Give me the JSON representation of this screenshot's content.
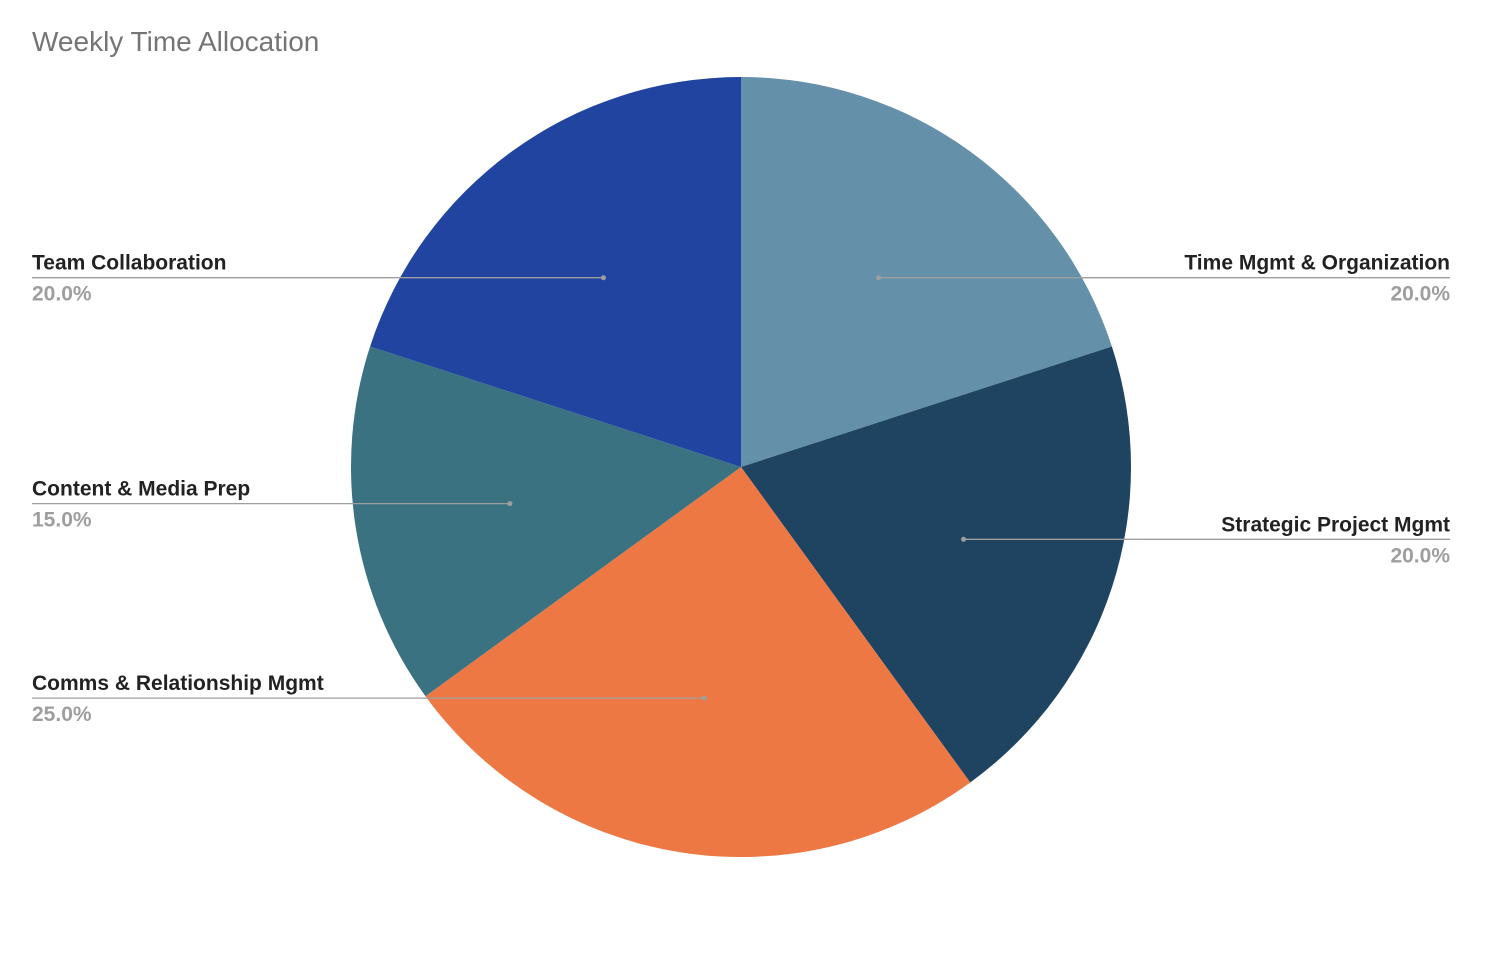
{
  "chart_data": {
    "type": "pie",
    "title": "Weekly Time Allocation",
    "start_angle_deg": 0,
    "direction": "clockwise",
    "legend": "labels beside slices with leader lines",
    "slices": [
      {
        "label": "Time Mgmt & Organization",
        "value": 20.0,
        "percent_label": "20.0%",
        "color": "#6590a9",
        "side": "right"
      },
      {
        "label": "Strategic Project Mgmt",
        "value": 20.0,
        "percent_label": "20.0%",
        "color": "#1e4462",
        "side": "right"
      },
      {
        "label": "Comms & Relationship Mgmt",
        "value": 25.0,
        "percent_label": "25.0%",
        "color": "#ed7844",
        "side": "left"
      },
      {
        "label": "Content & Media Prep",
        "value": 15.0,
        "percent_label": "15.0%",
        "color": "#3a7281",
        "side": "left"
      },
      {
        "label": "Team Collaboration",
        "value": 20.0,
        "percent_label": "20.0%",
        "color": "#2144a0",
        "side": "left"
      }
    ]
  }
}
